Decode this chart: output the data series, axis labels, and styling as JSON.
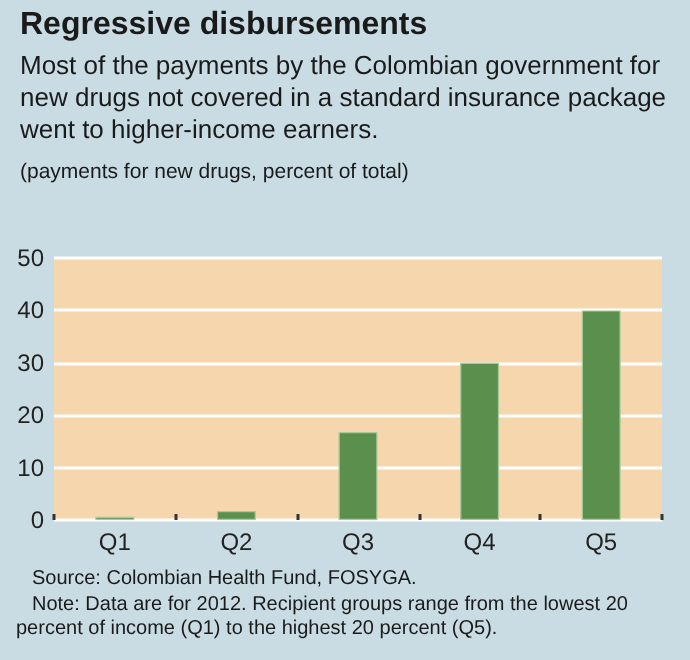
{
  "chart_data": {
    "type": "bar",
    "title": "Regressive disbursements",
    "subtitle": "Most of the payments by the Colombian government for new drugs not covered in a standard insurance package went to higher-income earners.",
    "ylabel": "(payments for new drugs, percent of total)",
    "categories": [
      "Q1",
      "Q2",
      "Q3",
      "Q4",
      "Q5"
    ],
    "values": [
      0.6,
      1.7,
      16.8,
      30,
      40
    ],
    "color": "#5a8f4e",
    "ylim": [
      0,
      50
    ],
    "yticks": [
      0,
      10,
      20,
      30,
      40,
      50
    ],
    "grid": "y",
    "annotations": [
      "Source: Colombian Health Fund, FOSYGA.",
      "Note: Data are for 2012. Recipient groups range from the lowest 20 percent of income (Q1) to the highest 20 percent (Q5)."
    ]
  }
}
